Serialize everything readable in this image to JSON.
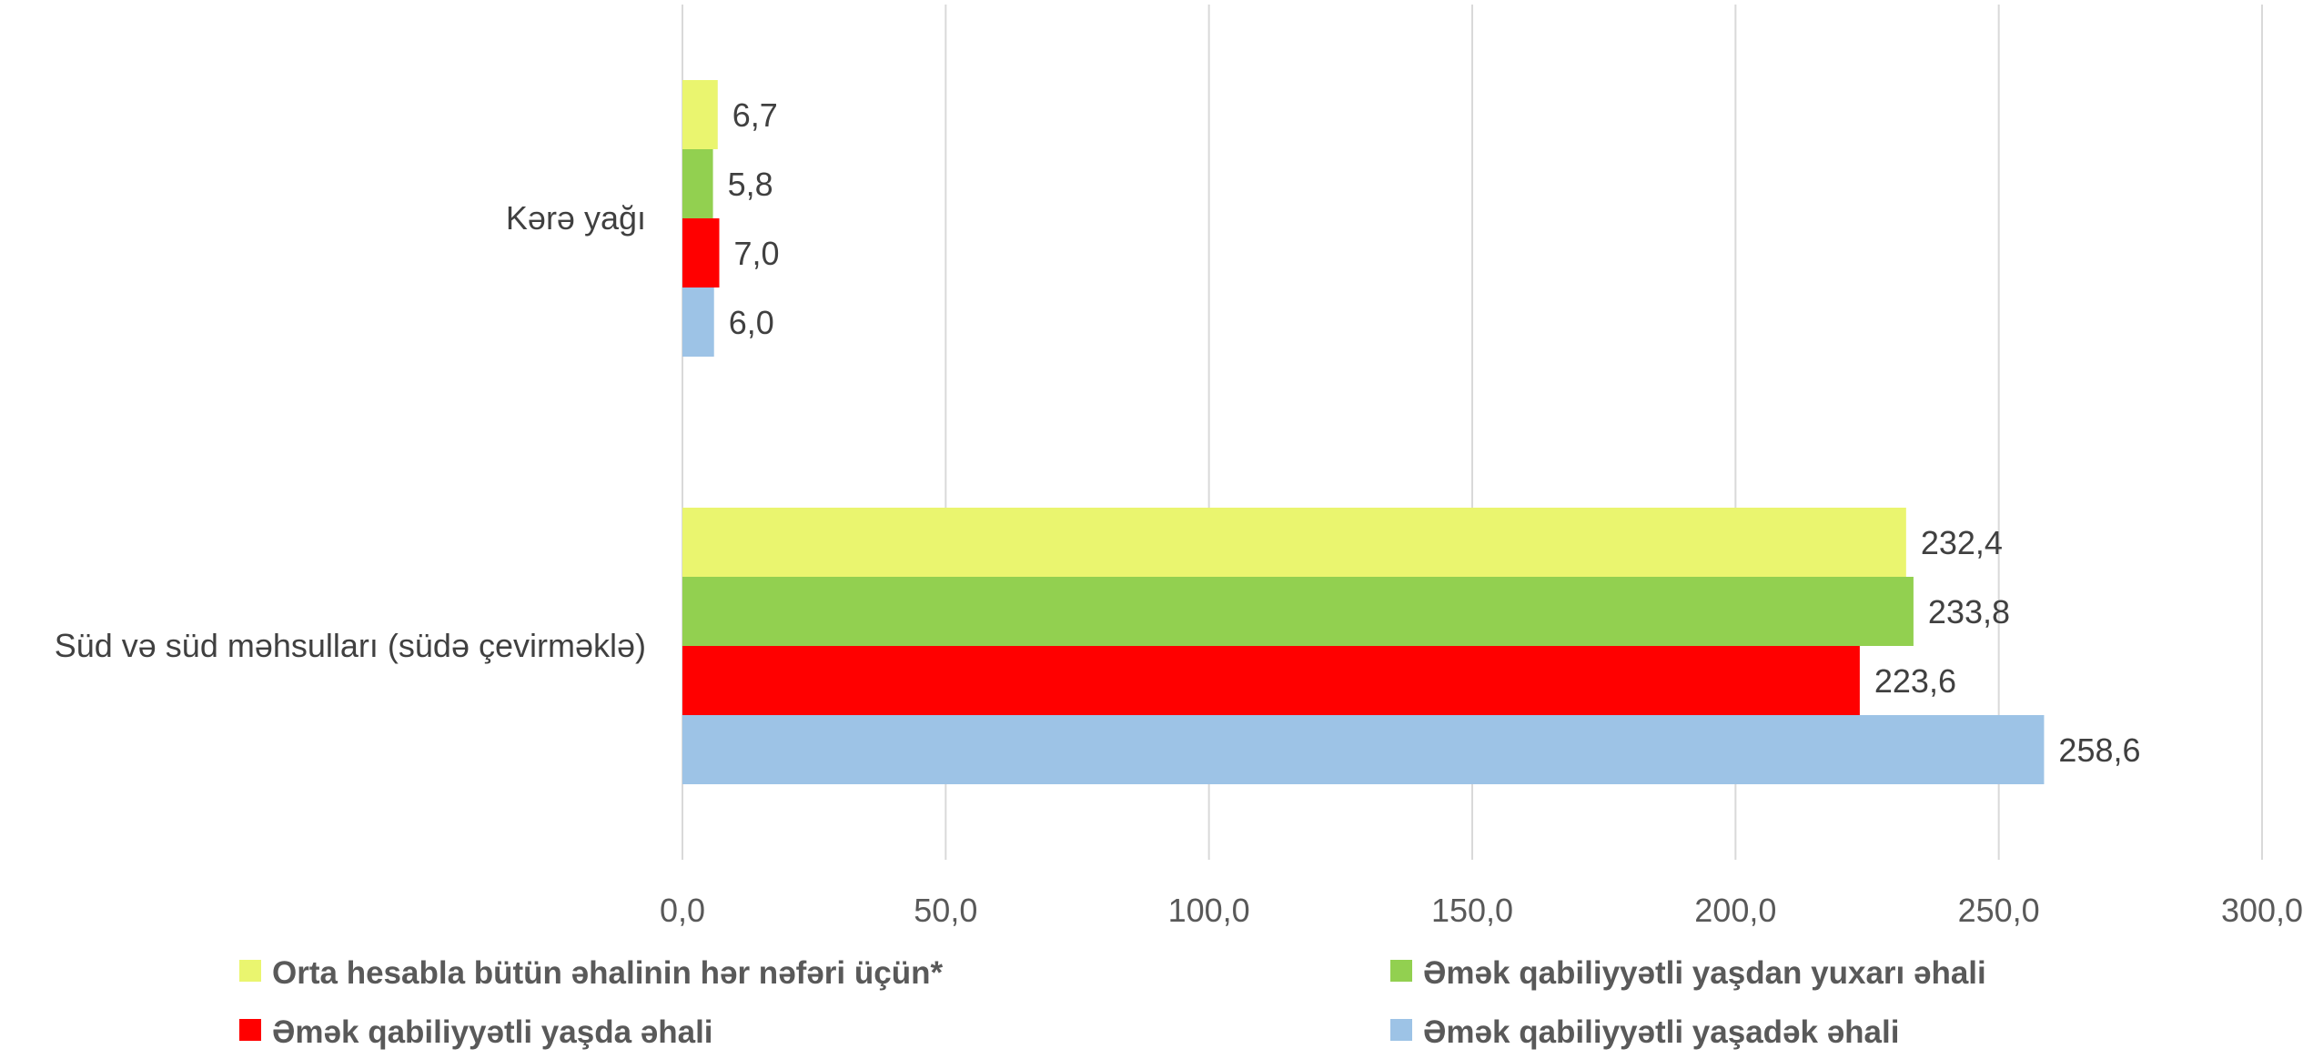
{
  "chart_data": {
    "type": "bar",
    "orientation": "horizontal",
    "title": "",
    "xlabel": "",
    "ylabel": "",
    "categories": [
      "Kərə yağı",
      "Süd və süd məhsulları (südə çevirməklə)"
    ],
    "series": [
      {
        "name": "Orta hesabla bütün əhalinin hər nəfəri üçün*",
        "color": "#EAF56F",
        "values": [
          6.7,
          232.4
        ],
        "labels": [
          "6,7",
          "232,4"
        ]
      },
      {
        "name": "Əmək qabiliyyətli yaşdan yuxarı əhali",
        "color": "#92D050",
        "values": [
          5.8,
          233.8
        ],
        "labels": [
          "5,8",
          "233,8"
        ]
      },
      {
        "name": "Əmək qabiliyyətli yaşda əhali",
        "color": "#FF0000",
        "values": [
          7.0,
          223.6
        ],
        "labels": [
          "7,0",
          "223,6"
        ]
      },
      {
        "name": "Əmək qabiliyyətli yaşadək əhali",
        "color": "#9DC3E6",
        "values": [
          6.0,
          258.6
        ],
        "labels": [
          "6,0",
          "258,6"
        ]
      }
    ],
    "xlim": [
      0,
      300
    ],
    "ticks": [
      "0,0",
      "50,0",
      "100,0",
      "150,0",
      "200,0",
      "250,0",
      "300,0"
    ],
    "grid": true,
    "legend_position": "bottom"
  }
}
